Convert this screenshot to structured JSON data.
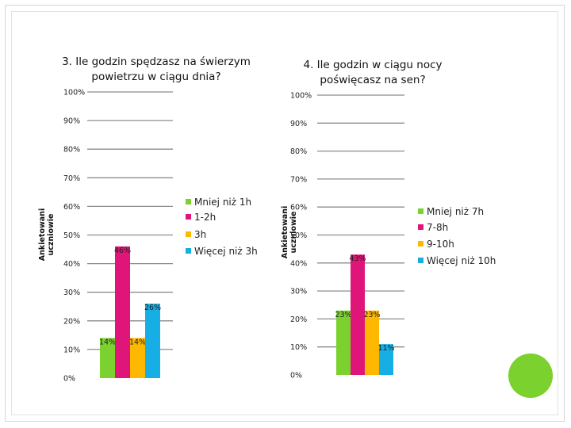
{
  "chart_data": [
    {
      "type": "bar",
      "title_lines": [
        "3. Ile godzin spędzasz na świerzym",
        "powietrzu w ciągu dnia?"
      ],
      "ylabel_lines": [
        "Ankietowani",
        "uczniowie"
      ],
      "ylim": [
        0,
        100
      ],
      "yticks": [
        0,
        10,
        20,
        30,
        40,
        50,
        60,
        70,
        80,
        90,
        100
      ],
      "tick_labels": [
        "0%",
        "10%",
        "20%",
        "30%",
        "40%",
        "50%",
        "60%",
        "70%",
        "80%",
        "90%",
        "100%"
      ],
      "categories": [
        "Mniej niż 1h",
        "1-2h",
        "3h",
        "Więcej niż 3h"
      ],
      "values": [
        14,
        46,
        14,
        26
      ],
      "data_labels": [
        "14%",
        "46%",
        "14%",
        "26%"
      ],
      "colors": [
        "#7bd12e",
        "#e0157a",
        "#ffb800",
        "#17aee6"
      ],
      "grid": true,
      "legend_position": "right"
    },
    {
      "type": "bar",
      "title_lines": [
        "4. Ile godzin w ciągu nocy",
        "poświęcasz na sen?"
      ],
      "ylabel_lines": [
        "Ankietowani",
        "uczniowie"
      ],
      "ylim": [
        0,
        100
      ],
      "yticks": [
        0,
        10,
        20,
        30,
        40,
        50,
        60,
        70,
        80,
        90,
        100
      ],
      "tick_labels": [
        "0%",
        "10%",
        "20%",
        "30%",
        "40%",
        "50%",
        "60%",
        "70%",
        "80%",
        "90%",
        "100%"
      ],
      "categories": [
        "Mniej niż 7h",
        "7-8h",
        "9-10h",
        "Więcej niż 10h"
      ],
      "values": [
        23,
        43,
        23,
        11
      ],
      "data_labels": [
        "23%",
        "43%",
        "23%",
        "11%"
      ],
      "colors": [
        "#7bd12e",
        "#e0157a",
        "#ffb800",
        "#17aee6"
      ],
      "grid": true,
      "legend_position": "right"
    }
  ],
  "decor": {
    "accent_color": "#7bd12e",
    "frame_color": "#d4d4d4"
  }
}
